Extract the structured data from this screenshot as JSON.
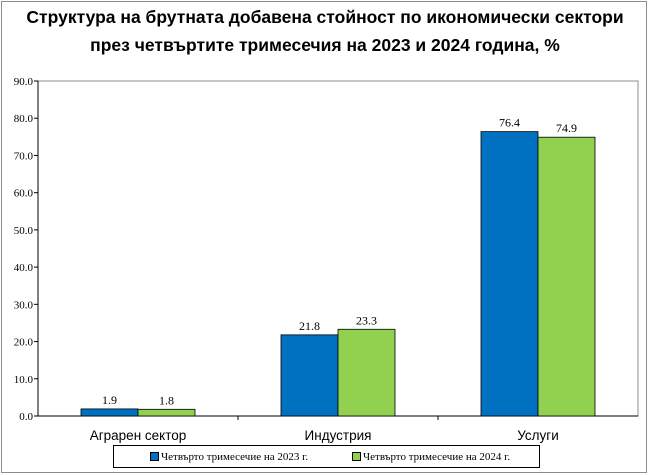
{
  "chart_data": {
    "type": "bar",
    "title_line1": "Структура на брутната добавена стойност по икономически сектори",
    "title_line2": "през четвъртите тримесечия на 2023 и 2024 година, %",
    "categories": [
      "Аграрен сектор",
      "Индустрия",
      "Услуги"
    ],
    "series": [
      {
        "name": "Четвърто тримесечие на 2023 г.",
        "values": [
          1.9,
          21.8,
          76.4
        ],
        "labels": [
          "1.9",
          "21.8",
          "76.4"
        ],
        "color": "#0070c0"
      },
      {
        "name": "Четвърто тримесечие на 2024 г.",
        "values": [
          1.8,
          23.3,
          74.9
        ],
        "labels": [
          "1.8",
          "23.3",
          "74.9"
        ],
        "color": "#92d050"
      }
    ],
    "ylim": [
      0,
      90
    ],
    "yticks": [
      "0.0",
      "10.0",
      "20.0",
      "30.0",
      "40.0",
      "50.0",
      "60.0",
      "70.0",
      "80.0",
      "90.0"
    ],
    "grid": false,
    "legend_position": "bottom"
  }
}
